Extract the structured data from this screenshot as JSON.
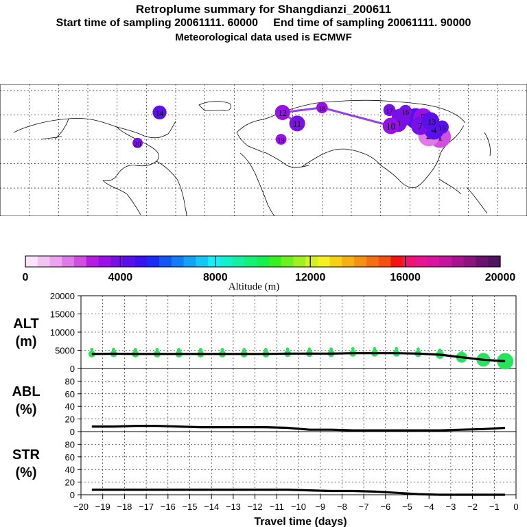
{
  "header": {
    "title": "Retroplume summary for Shangdianzi_200611",
    "sampling_line": "Start time of sampling 20061111. 60000     End time of sampling 20061111. 90000",
    "met_line": "Meteorological data used is ECMWF"
  },
  "map": {
    "clusters": [
      {
        "label": "1",
        "lon": 120.5,
        "lat": 42.0,
        "alt": 2100
      },
      {
        "label": "2",
        "lon": 113.0,
        "lat": 43.0,
        "alt": 1800
      },
      {
        "label": "3",
        "lon": 104.0,
        "lat": 57.0,
        "alt": 4400
      },
      {
        "label": "4",
        "lon": 116.5,
        "lat": 48.0,
        "alt": 4200
      },
      {
        "label": "5",
        "lon": 109.0,
        "lat": 57.5,
        "alt": 3400
      },
      {
        "label": "6",
        "lon": 94.0,
        "lat": 57.5,
        "alt": 3600
      },
      {
        "label": "7",
        "lon": 107.0,
        "lat": 51.0,
        "alt": 3900
      },
      {
        "label": "8",
        "lon": 114.0,
        "lat": 55.0,
        "alt": 4600
      },
      {
        "label": "9",
        "lon": 92.0,
        "lat": 53.0,
        "alt": 3800
      },
      {
        "label": "10",
        "lon": 87.0,
        "lat": 51.0,
        "alt": 3500
      },
      {
        "label": "11",
        "lon": 23.0,
        "lat": 53.0,
        "alt": 3900
      },
      {
        "label": "12",
        "lon": 13.0,
        "lat": 62.0,
        "alt": 3300
      },
      {
        "label": "13",
        "lon": 115.0,
        "lat": 55.0,
        "alt": 4500
      },
      {
        "label": "14",
        "lon": -71.0,
        "lat": 62.0,
        "alt": 4600
      },
      {
        "label": "15",
        "lon": 122.0,
        "lat": 50.0,
        "alt": 4300
      },
      {
        "label": "16",
        "lon": 97.0,
        "lat": 63.0,
        "alt": 3700
      },
      {
        "label": "17",
        "lon": 86.0,
        "lat": 64.0,
        "alt": 4100
      },
      {
        "label": "18",
        "lon": 40.0,
        "lat": 66.0,
        "alt": 3400
      },
      {
        "label": "19",
        "lon": 12.0,
        "lat": 40.0,
        "alt": 3500
      },
      {
        "label": "20",
        "lon": -86.0,
        "lat": 37.0,
        "alt": 3700
      }
    ]
  },
  "colorbar": {
    "ticks": [
      "0",
      "4000",
      "8000",
      "12000",
      "16000",
      "20000"
    ],
    "label": "Altitude (m)"
  },
  "chart_data": [
    {
      "type": "line",
      "name": "ALT",
      "ylabel": "ALT\n(m)",
      "ylabel_lines": [
        "ALT",
        "(m)"
      ],
      "ylim": [
        0,
        20000
      ],
      "yticks": [
        "0",
        "5000",
        "10000",
        "15000",
        "20000"
      ],
      "x": [
        -19.5,
        -18.5,
        -17.5,
        -16.5,
        -15.5,
        -14.5,
        -13.5,
        -12.5,
        -11.5,
        -10.5,
        -9.5,
        -8.5,
        -7.5,
        -6.5,
        -5.5,
        -4.5,
        -3.5,
        -2.5,
        -1.5,
        -0.5
      ],
      "series": [
        {
          "name": "mean altitude",
          "values": [
            4000,
            4050,
            4000,
            4000,
            4000,
            4000,
            4000,
            4000,
            4000,
            4100,
            4100,
            4100,
            4200,
            4200,
            4200,
            4100,
            3800,
            3100,
            2400,
            2000
          ]
        }
      ]
    },
    {
      "type": "line",
      "name": "ABL",
      "ylabel": "ABL\n(%)",
      "ylabel_lines": [
        "ABL",
        "(%)"
      ],
      "ylim": [
        0,
        100
      ],
      "yticks": [
        "0",
        "20",
        "40",
        "60",
        "80"
      ],
      "x": [
        -19.5,
        -18.5,
        -17.5,
        -16.5,
        -15.5,
        -14.5,
        -13.5,
        -12.5,
        -11.5,
        -10.5,
        -9.5,
        -8.5,
        -7.5,
        -6.5,
        -5.5,
        -4.5,
        -3.5,
        -2.5,
        -1.5,
        -0.5
      ],
      "series": [
        {
          "name": "fraction in ABL",
          "values": [
            8,
            8,
            9,
            9,
            8,
            7,
            7,
            7,
            7,
            6,
            3,
            3,
            2,
            2,
            2,
            2,
            2,
            3,
            4,
            6
          ]
        }
      ]
    },
    {
      "type": "line",
      "name": "STR",
      "ylabel": "STR\n(%)",
      "ylabel_lines": [
        "STR",
        "(%)"
      ],
      "ylim": [
        0,
        100
      ],
      "yticks": [
        "0",
        "20",
        "40",
        "60",
        "80"
      ],
      "xlabel": "Travel time (days)",
      "xlim": [
        -20,
        0
      ],
      "xticks": [
        "−20",
        "−19",
        "−18",
        "−17",
        "−16",
        "−15",
        "−14",
        "−13",
        "−12",
        "−11",
        "−10",
        "−9",
        "−8",
        "−7",
        "−6",
        "−5",
        "−4",
        "−3",
        "−2",
        "−1",
        "0"
      ],
      "x": [
        -19.5,
        -18.5,
        -17.5,
        -16.5,
        -15.5,
        -14.5,
        -13.5,
        -12.5,
        -11.5,
        -10.5,
        -9.5,
        -8.5,
        -7.5,
        -6.5,
        -5.5,
        -4.5,
        -3.5,
        -2.5,
        -1.5,
        -0.5
      ],
      "series": [
        {
          "name": "fraction in stratosphere",
          "values": [
            8,
            8,
            8,
            8,
            8,
            8,
            8,
            8,
            8,
            8,
            7,
            6,
            6,
            5,
            3,
            1,
            0,
            0,
            0,
            0
          ]
        }
      ]
    }
  ]
}
